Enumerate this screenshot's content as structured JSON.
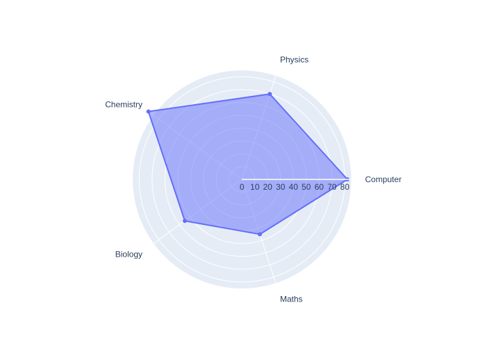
{
  "chart_data": {
    "type": "radar",
    "axes": [
      "Computer",
      "Physics",
      "Chemistry",
      "Biology",
      "Maths"
    ],
    "series": [
      {
        "values": [
          82,
          70,
          90,
          55,
          45
        ]
      }
    ],
    "radial_range": [
      0,
      85
    ],
    "radial_ticks": [
      0,
      10,
      20,
      30,
      40,
      50,
      60,
      70,
      80
    ],
    "radial_tick_labels": [
      "0",
      "10",
      "20",
      "30",
      "40",
      "50",
      "60",
      "70",
      "80"
    ],
    "fill": true,
    "grid": true,
    "legend": "none",
    "colors": {
      "line": "#636efa",
      "fill": "#636efa",
      "polar_bg": "#e5ecf6",
      "grid": "#ffffff",
      "text": "#2a3f5f"
    }
  }
}
